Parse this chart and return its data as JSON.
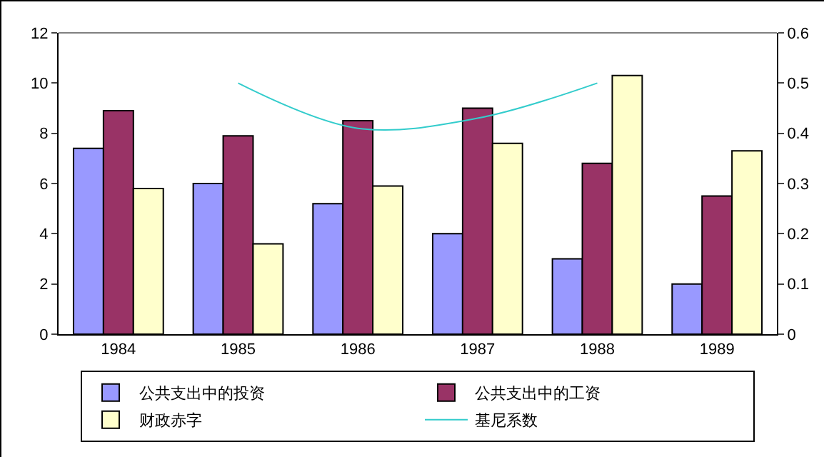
{
  "chart_data": {
    "type": "bar",
    "categories": [
      "1984",
      "1985",
      "1986",
      "1987",
      "1988",
      "1989"
    ],
    "series": [
      {
        "name": "公共支出中的投资",
        "color": "#9999ff",
        "values": [
          7.4,
          6.0,
          5.2,
          4.0,
          3.0,
          2.0
        ]
      },
      {
        "name": "公共支出中的工资",
        "color": "#993366",
        "values": [
          8.9,
          7.9,
          8.5,
          9.0,
          6.8,
          5.5
        ]
      },
      {
        "name": "财政赤字",
        "color": "#ffffcc",
        "values": [
          5.8,
          3.6,
          5.9,
          7.6,
          10.3,
          7.3
        ]
      },
      {
        "name": "基尼系数",
        "type": "line",
        "axis": "y2",
        "color": "#33cccc",
        "values": [
          null,
          0.5,
          0.41,
          0.43,
          0.5,
          null
        ]
      }
    ],
    "ylim": [
      0,
      12
    ],
    "yticks": [
      0,
      2,
      4,
      6,
      8,
      10,
      12
    ],
    "y2lim": [
      0,
      0.6
    ],
    "y2ticks": [
      0,
      0.1,
      0.2,
      0.3,
      0.4,
      0.5,
      0.6
    ],
    "grid": false,
    "legend": "bottom",
    "marker": "none"
  }
}
